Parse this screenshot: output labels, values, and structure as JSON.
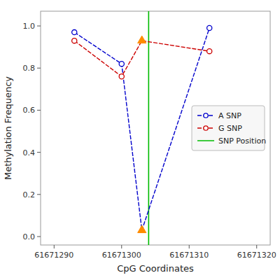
{
  "chart_data": {
    "type": "line",
    "xlabel": "CpG Coordinates",
    "ylabel": "Methylation Frequency",
    "x": [
      61671293,
      61671300,
      61671303,
      61671313
    ],
    "series": [
      {
        "name": "A SNP",
        "color": "#0000CC",
        "values": [
          0.97,
          0.82,
          0.03,
          0.99
        ],
        "marker": "circle",
        "line_style": "dashed",
        "highlight_index": 2
      },
      {
        "name": "G SNP",
        "color": "#CC0000",
        "values": [
          0.93,
          0.76,
          0.93,
          0.88
        ],
        "marker": "circle",
        "line_style": "dashed",
        "highlight_index": 2
      }
    ],
    "highlight_color": "#FF8C00",
    "vline": {
      "name": "SNP Position",
      "x": 61671304,
      "color": "#00BB00"
    },
    "xlim": [
      61671288,
      61671322
    ],
    "ylim": [
      -0.04,
      1.07
    ],
    "xticks": [
      61671290,
      61671300,
      61671310,
      61671320
    ],
    "yticks": [
      {
        "value": 0.0,
        "label": "0.0"
      },
      0.2,
      0.4,
      0.6,
      0.8,
      {
        "value": 1.0,
        "label": "1.0"
      }
    ],
    "grid": false,
    "legend": "right"
  }
}
